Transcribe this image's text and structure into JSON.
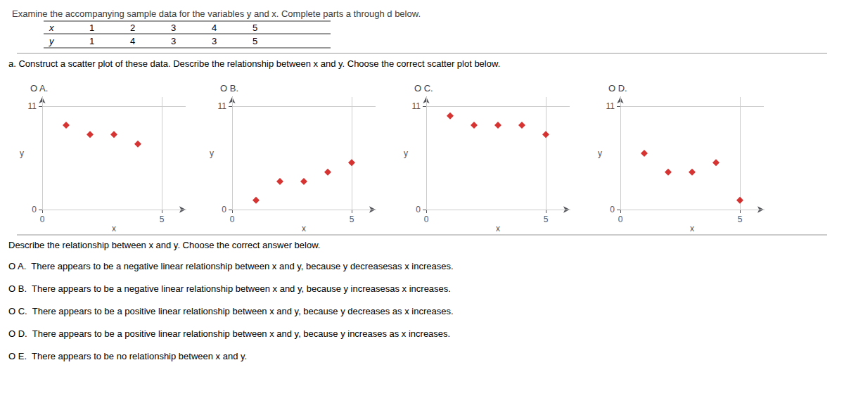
{
  "title": "Examine the accompanying sample data for the variables y and x. Complete parts a through d below.",
  "table": {
    "row_labels": [
      "x",
      "y"
    ],
    "rows": [
      [
        1,
        2,
        3,
        4,
        5
      ],
      [
        1,
        4,
        3,
        3,
        5
      ]
    ]
  },
  "question_a": "a. Construct a scatter plot of these data. Describe the relationship between x and y. Choose the correct scatter plot below.",
  "question_b": "Describe the relationship between x and y. Choose the correct answer below.",
  "answers": [
    "O A.  There appears to be a negative linear relationship between x and y, because y decreasesas x increases.",
    "O B.  There appears to be a negative linear relationship between x and y, because y increasesas x increases.",
    "O C.  There appears to be a positive linear relationship between x and y, because y decreases as x increases.",
    "O D.  There appears to be a positive linear relationship between x and y, because y increases as x increases.",
    "O E.  There appears to be no relationship between x and y."
  ],
  "chart_data": [
    {
      "type": "scatter",
      "title": "O A.",
      "x": [
        1,
        2,
        3,
        4
      ],
      "values": [
        9,
        8,
        8,
        7
      ],
      "color": "#cc0000",
      "marker": "diamond",
      "xlabel": "x",
      "ylabel": "y",
      "xlim": [
        0,
        6
      ],
      "ylim": [
        0,
        12
      ],
      "xticks": [
        0,
        5
      ],
      "yticks": [
        0,
        11
      ],
      "grid": true
    },
    {
      "type": "scatter",
      "title": "O B.",
      "x": [
        1,
        2,
        3,
        4,
        5
      ],
      "values": [
        1,
        3,
        3,
        4,
        5
      ],
      "color": "#cc0000",
      "marker": "diamond",
      "xlabel": "x",
      "ylabel": "y",
      "xlim": [
        0,
        6
      ],
      "ylim": [
        0,
        12
      ],
      "xticks": [
        0,
        5
      ],
      "yticks": [
        0,
        11
      ],
      "grid": true
    },
    {
      "type": "scatter",
      "title": "O C.",
      "x": [
        1,
        2,
        3,
        4,
        5
      ],
      "values": [
        10,
        9,
        9,
        9,
        8
      ],
      "color": "#cc0000",
      "marker": "diamond",
      "xlabel": "x",
      "ylabel": "y",
      "xlim": [
        0,
        6
      ],
      "ylim": [
        0,
        12
      ],
      "xticks": [
        0,
        5
      ],
      "yticks": [
        0,
        11
      ],
      "grid": true
    },
    {
      "type": "scatter",
      "title": "O D.",
      "x": [
        1,
        2,
        3,
        4,
        5
      ],
      "values": [
        6,
        4,
        4,
        5,
        1
      ],
      "color": "#cc0000",
      "marker": "diamond",
      "xlabel": "x",
      "ylabel": "y",
      "xlim": [
        0,
        6
      ],
      "ylim": [
        0,
        12
      ],
      "xticks": [
        0,
        5
      ],
      "yticks": [
        0,
        11
      ],
      "grid": true
    }
  ]
}
